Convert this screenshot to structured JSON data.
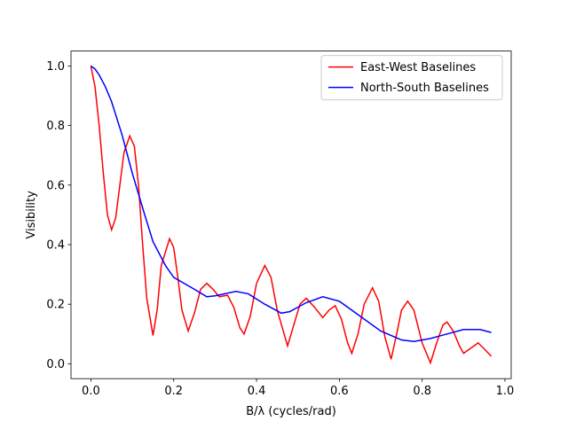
{
  "chart_data": {
    "type": "line",
    "xlabel": "B/λ (cycles/rad)",
    "ylabel": "Visibility",
    "xlim": [
      -0.048,
      1.015
    ],
    "ylim": [
      -0.05,
      1.05
    ],
    "xticks": [
      {
        "value": 0,
        "label": "0.0"
      },
      {
        "value": 0.2,
        "label": "0.2"
      },
      {
        "value": 0.4,
        "label": "0.4"
      },
      {
        "value": 0.6,
        "label": "0.6"
      },
      {
        "value": 0.8,
        "label": "0.8"
      },
      {
        "value": 1,
        "label": "1.0"
      }
    ],
    "yticks": [
      {
        "value": 0,
        "label": "0.0"
      },
      {
        "value": 0.2,
        "label": "0.2"
      },
      {
        "value": 0.4,
        "label": "0.4"
      },
      {
        "value": 0.6,
        "label": "0.6"
      },
      {
        "value": 0.8,
        "label": "0.8"
      },
      {
        "value": 1,
        "label": "1.0"
      }
    ],
    "legend": "upper right",
    "series": [
      {
        "name": "East-West Baselines",
        "color": "#ff0000",
        "x": [
          0,
          0.01,
          0.02,
          0.03,
          0.04,
          0.05,
          0.06,
          0.07,
          0.08,
          0.094,
          0.105,
          0.115,
          0.125,
          0.135,
          0.15,
          0.16,
          0.17,
          0.19,
          0.2,
          0.21,
          0.22,
          0.235,
          0.25,
          0.265,
          0.28,
          0.295,
          0.31,
          0.33,
          0.345,
          0.36,
          0.37,
          0.385,
          0.4,
          0.42,
          0.435,
          0.45,
          0.475,
          0.49,
          0.505,
          0.52,
          0.54,
          0.56,
          0.575,
          0.59,
          0.605,
          0.62,
          0.63,
          0.645,
          0.66,
          0.68,
          0.695,
          0.71,
          0.725,
          0.74,
          0.75,
          0.765,
          0.78,
          0.8,
          0.82,
          0.835,
          0.85,
          0.86,
          0.875,
          0.89,
          0.9,
          0.915,
          0.935,
          0.95,
          0.967
        ],
        "values": [
          1.0,
          0.93,
          0.8,
          0.64,
          0.5,
          0.45,
          0.49,
          0.6,
          0.71,
          0.765,
          0.73,
          0.6,
          0.4,
          0.22,
          0.095,
          0.18,
          0.33,
          0.42,
          0.39,
          0.29,
          0.18,
          0.11,
          0.17,
          0.25,
          0.27,
          0.25,
          0.225,
          0.23,
          0.19,
          0.12,
          0.1,
          0.16,
          0.27,
          0.33,
          0.29,
          0.18,
          0.06,
          0.13,
          0.2,
          0.22,
          0.19,
          0.155,
          0.18,
          0.195,
          0.15,
          0.07,
          0.035,
          0.1,
          0.2,
          0.255,
          0.21,
          0.09,
          0.015,
          0.11,
          0.18,
          0.21,
          0.18,
          0.07,
          0.003,
          0.07,
          0.13,
          0.14,
          0.11,
          0.06,
          0.035,
          0.05,
          0.07,
          0.05,
          0.025
        ]
      },
      {
        "name": "North-South Baselines",
        "color": "#0000ff",
        "x": [
          0,
          0.01,
          0.02,
          0.035,
          0.05,
          0.075,
          0.1,
          0.13,
          0.15,
          0.18,
          0.2,
          0.25,
          0.28,
          0.3,
          0.35,
          0.38,
          0.42,
          0.46,
          0.48,
          0.52,
          0.56,
          0.6,
          0.65,
          0.7,
          0.75,
          0.78,
          0.82,
          0.86,
          0.9,
          0.94,
          0.967
        ],
        "values": [
          1.0,
          0.99,
          0.97,
          0.93,
          0.88,
          0.77,
          0.64,
          0.5,
          0.41,
          0.33,
          0.29,
          0.25,
          0.225,
          0.228,
          0.243,
          0.235,
          0.2,
          0.17,
          0.175,
          0.205,
          0.225,
          0.21,
          0.16,
          0.11,
          0.08,
          0.075,
          0.085,
          0.1,
          0.115,
          0.115,
          0.105
        ]
      }
    ]
  }
}
